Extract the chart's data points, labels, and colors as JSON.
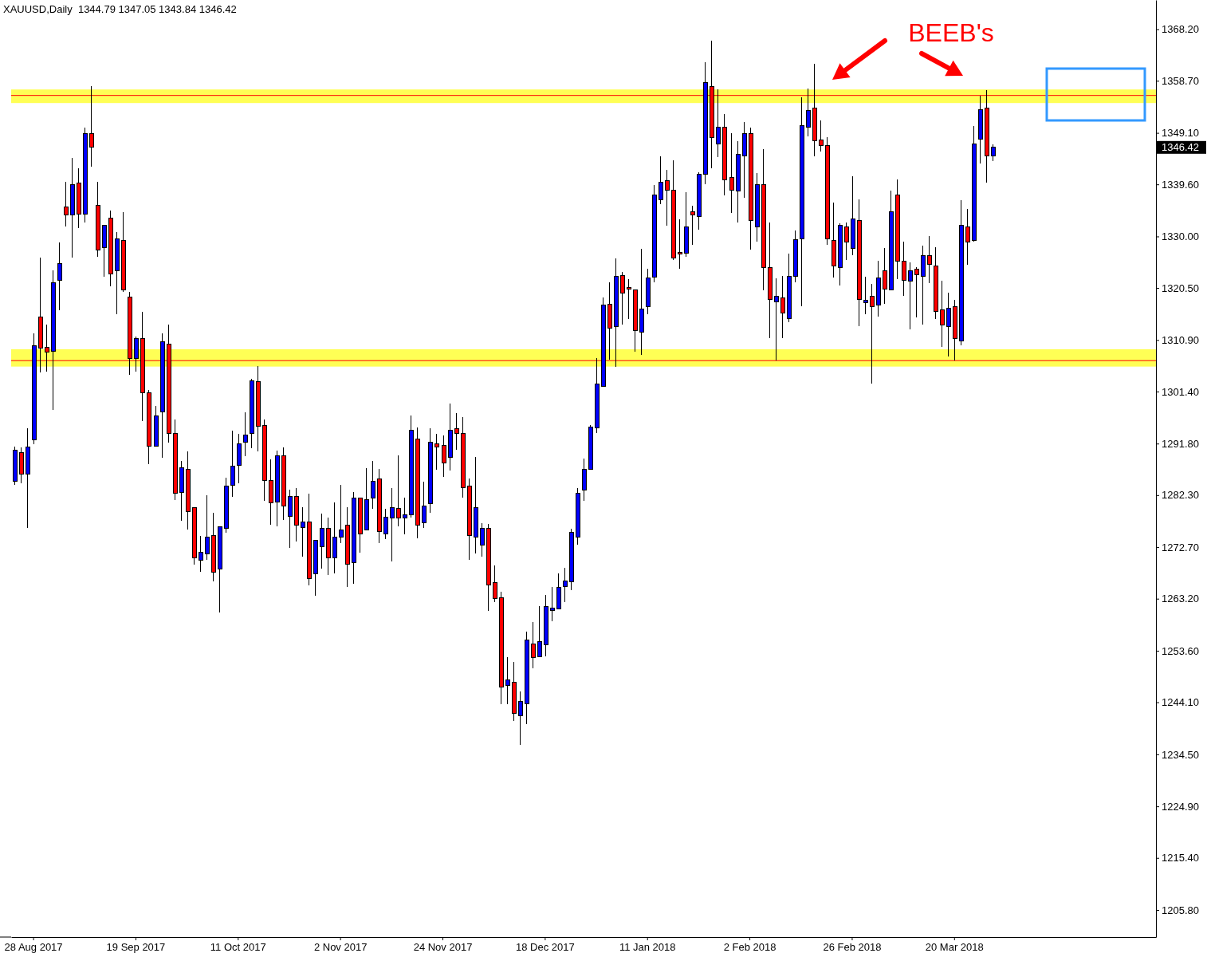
{
  "chart_data": {
    "type": "candlestick",
    "title": "XAUUSD,Daily  1344.79 1347.05 1343.84 1346.42",
    "categories": [
      null,
      null,
      null,
      "28 Aug 2017",
      null,
      null,
      null,
      null,
      null,
      null,
      null,
      null,
      null,
      null,
      null,
      null,
      null,
      null,
      null,
      "19 Sep 2017",
      null,
      null,
      null,
      null,
      null,
      null,
      null,
      null,
      null,
      null,
      null,
      null,
      null,
      null,
      null,
      "11 Oct 2017",
      null,
      null,
      null,
      null,
      null,
      null,
      null,
      null,
      null,
      null,
      null,
      null,
      null,
      null,
      null,
      "2 Nov 2017",
      null,
      null,
      null,
      null,
      null,
      null,
      null,
      null,
      null,
      null,
      null,
      null,
      null,
      null,
      null,
      "24 Nov 2017",
      null,
      null,
      null,
      null,
      null,
      null,
      null,
      null,
      null,
      null,
      null,
      null,
      null,
      null,
      null,
      "18 Dec 2017",
      null,
      null,
      null,
      null,
      null,
      null,
      null,
      null,
      null,
      null,
      null,
      null,
      null,
      null,
      null,
      "11 Jan 2018",
      null,
      null,
      null,
      null,
      null,
      null,
      null,
      null,
      null,
      null,
      null,
      null,
      null,
      null,
      null,
      "2 Feb 2018",
      null,
      null,
      null,
      null,
      null,
      null,
      null,
      null,
      null,
      null,
      null,
      null,
      null,
      null,
      null,
      "26 Feb 2018",
      null,
      null,
      null,
      null,
      null,
      null,
      null,
      null,
      null,
      null,
      null,
      null,
      null,
      null,
      null,
      "20 Mar 2018",
      null,
      null,
      null,
      null,
      null,
      null,
      null,
      null,
      null,
      null,
      null,
      null,
      null,
      null,
      null,
      null,
      null,
      null,
      null,
      null,
      null,
      null,
      null,
      null,
      null,
      null,
      null,
      null,
      null,
      null,
      null
    ],
    "ohlc": [
      [
        1284.8,
        1291.3,
        1284.2,
        1290.6
      ],
      [
        1290.2,
        1291.1,
        1284.5,
        1286.2
      ],
      [
        1286.2,
        1294.6,
        1276.2,
        1291.2
      ],
      [
        1292.5,
        1312.1,
        1291.7,
        1309.9
      ],
      [
        1315.2,
        1326.1,
        1304.9,
        1309.4
      ],
      [
        1309.5,
        1313.7,
        1305.1,
        1308.7
      ],
      [
        1308.8,
        1323.7,
        1298.0,
        1321.4
      ],
      [
        1321.9,
        1328.9,
        1316.4,
        1325.0
      ],
      [
        1335.5,
        1340.0,
        1331.8,
        1334.0
      ],
      [
        1334.0,
        1344.5,
        1326.1,
        1339.6
      ],
      [
        1339.8,
        1342.6,
        1331.6,
        1334.1
      ],
      [
        1334.1,
        1350.0,
        1332.5,
        1349.0
      ],
      [
        1348.9,
        1357.7,
        1342.8,
        1346.5
      ],
      [
        1335.7,
        1340.0,
        1326.3,
        1327.5
      ],
      [
        1327.9,
        1332.1,
        1322.6,
        1332.0
      ],
      [
        1333.4,
        1334.8,
        1320.8,
        1323.1
      ],
      [
        1323.7,
        1330.8,
        1315.6,
        1329.5
      ],
      [
        1329.2,
        1334.5,
        1319.8,
        1320.1
      ],
      [
        1318.8,
        1319.8,
        1304.5,
        1307.5
      ],
      [
        1307.5,
        1311.6,
        1305.1,
        1311.1
      ],
      [
        1311.2,
        1316.1,
        1296.0,
        1301.2
      ],
      [
        1301.2,
        1301.7,
        1288.0,
        1291.3
      ],
      [
        1291.3,
        1298.7,
        1291.2,
        1296.9
      ],
      [
        1297.6,
        1312.1,
        1289.2,
        1310.6
      ],
      [
        1310.2,
        1313.8,
        1292.0,
        1293.7
      ],
      [
        1293.6,
        1296.2,
        1281.4,
        1282.6
      ],
      [
        1282.8,
        1288.6,
        1277.6,
        1287.3
      ],
      [
        1287.0,
        1290.4,
        1276.0,
        1279.2
      ],
      [
        1280.0,
        1280.1,
        1269.5,
        1270.8
      ],
      [
        1270.3,
        1274.7,
        1268.2,
        1271.8
      ],
      [
        1271.5,
        1282.3,
        1270.4,
        1274.6
      ],
      [
        1274.9,
        1279.1,
        1266.4,
        1268.1
      ],
      [
        1268.6,
        1276.6,
        1260.6,
        1276.4
      ],
      [
        1276.2,
        1285.5,
        1275.3,
        1283.9
      ],
      [
        1284.1,
        1294.2,
        1282.0,
        1287.7
      ],
      [
        1287.8,
        1293.6,
        1284.5,
        1291.7
      ],
      [
        1292.1,
        1297.6,
        1289.5,
        1293.4
      ],
      [
        1293.6,
        1303.8,
        1290.9,
        1303.4
      ],
      [
        1303.3,
        1306.1,
        1290.4,
        1295.0
      ],
      [
        1295.2,
        1296.2,
        1281.3,
        1285.0
      ],
      [
        1285.0,
        1288.9,
        1276.9,
        1280.9
      ],
      [
        1281.0,
        1290.5,
        1276.6,
        1289.6
      ],
      [
        1289.5,
        1291.1,
        1277.7,
        1280.3
      ],
      [
        1278.4,
        1283.3,
        1272.5,
        1282.0
      ],
      [
        1282.1,
        1283.6,
        1273.7,
        1276.7
      ],
      [
        1276.3,
        1280.0,
        1270.9,
        1277.4
      ],
      [
        1277.4,
        1282.5,
        1265.6,
        1266.9
      ],
      [
        1267.8,
        1274.1,
        1263.7,
        1274.0
      ],
      [
        1272.8,
        1278.9,
        1268.8,
        1276.2
      ],
      [
        1276.2,
        1278.1,
        1267.6,
        1270.8
      ],
      [
        1270.8,
        1280.9,
        1267.9,
        1274.5
      ],
      [
        1274.6,
        1284.2,
        1273.4,
        1275.9
      ],
      [
        1276.7,
        1280.0,
        1265.4,
        1269.6
      ],
      [
        1269.9,
        1282.9,
        1266.0,
        1281.8
      ],
      [
        1281.7,
        1281.8,
        1271.7,
        1275.2
      ],
      [
        1275.9,
        1287.3,
        1275.9,
        1281.4
      ],
      [
        1281.8,
        1288.6,
        1279.8,
        1284.9
      ],
      [
        1285.3,
        1287.2,
        1273.4,
        1275.6
      ],
      [
        1275.2,
        1279.8,
        1274.2,
        1278.2
      ],
      [
        1278.1,
        1283.6,
        1270.0,
        1280.0
      ],
      [
        1279.9,
        1289.6,
        1276.6,
        1278.1
      ],
      [
        1278.1,
        1281.8,
        1275.1,
        1278.6
      ],
      [
        1278.6,
        1297.0,
        1278.2,
        1294.3
      ],
      [
        1292.7,
        1294.8,
        1274.4,
        1276.8
      ],
      [
        1277.2,
        1284.8,
        1276.2,
        1280.3
      ],
      [
        1280.8,
        1294.6,
        1279.0,
        1292.0
      ],
      [
        1291.8,
        1293.6,
        1287.0,
        1291.1
      ],
      [
        1291.4,
        1293.3,
        1285.6,
        1288.3
      ],
      [
        1289.3,
        1299.2,
        1286.8,
        1294.3
      ],
      [
        1294.5,
        1297.4,
        1290.6,
        1293.6
      ],
      [
        1293.6,
        1296.7,
        1281.9,
        1283.6
      ],
      [
        1283.9,
        1285.3,
        1270.3,
        1274.9
      ],
      [
        1274.5,
        1289.3,
        1271.6,
        1280.0
      ],
      [
        1273.1,
        1277.1,
        1271.0,
        1276.1
      ],
      [
        1276.2,
        1277.0,
        1260.9,
        1265.8
      ],
      [
        1266.1,
        1269.3,
        1262.5,
        1263.3
      ],
      [
        1263.4,
        1264.5,
        1243.8,
        1246.9
      ],
      [
        1247.2,
        1252.4,
        1243.8,
        1248.3
      ],
      [
        1247.8,
        1251.5,
        1240.6,
        1242.1
      ],
      [
        1241.6,
        1246.1,
        1236.3,
        1244.2
      ],
      [
        1243.8,
        1257.1,
        1240.0,
        1255.6
      ],
      [
        1254.8,
        1258.9,
        1250.3,
        1252.3
      ],
      [
        1252.5,
        1261.8,
        1252.5,
        1255.3
      ],
      [
        1254.7,
        1263.9,
        1252.5,
        1261.8
      ],
      [
        1261.0,
        1265.3,
        1259.0,
        1261.4
      ],
      [
        1261.3,
        1267.8,
        1261.3,
        1265.3
      ],
      [
        1265.5,
        1268.9,
        1262.5,
        1266.5
      ],
      [
        1266.3,
        1276.1,
        1264.7,
        1275.4
      ],
      [
        1274.5,
        1283.6,
        1273.1,
        1282.7
      ],
      [
        1283.2,
        1289.0,
        1281.2,
        1287.0
      ],
      [
        1287.0,
        1295.2,
        1287.0,
        1294.8
      ],
      [
        1294.7,
        1307.5,
        1293.8,
        1302.8
      ],
      [
        1302.3,
        1318.8,
        1302.3,
        1317.3
      ],
      [
        1317.5,
        1321.5,
        1307.3,
        1313.1
      ],
      [
        1313.4,
        1326.0,
        1305.9,
        1322.7
      ],
      [
        1322.8,
        1323.4,
        1313.7,
        1319.5
      ],
      [
        1320.6,
        1322.2,
        1314.8,
        1320.3
      ],
      [
        1320.2,
        1320.2,
        1308.8,
        1312.7
      ],
      [
        1312.4,
        1327.7,
        1308.2,
        1316.6
      ],
      [
        1317.0,
        1324.0,
        1315.7,
        1322.4
      ],
      [
        1322.5,
        1339.5,
        1321.5,
        1337.7
      ],
      [
        1336.8,
        1344.8,
        1335.9,
        1340.0
      ],
      [
        1340.3,
        1342.3,
        1332.0,
        1338.5
      ],
      [
        1338.5,
        1344.1,
        1325.7,
        1326.0
      ],
      [
        1327.1,
        1333.2,
        1324.1,
        1326.8
      ],
      [
        1326.9,
        1338.2,
        1326.3,
        1331.7
      ],
      [
        1334.6,
        1335.6,
        1328.4,
        1333.9
      ],
      [
        1333.6,
        1341.9,
        1331.3,
        1341.4
      ],
      [
        1341.5,
        1362.2,
        1339.6,
        1358.4
      ],
      [
        1357.6,
        1366.1,
        1342.5,
        1348.3
      ],
      [
        1347.1,
        1357.2,
        1344.6,
        1350.2
      ],
      [
        1350.1,
        1352.5,
        1337.6,
        1340.4
      ],
      [
        1340.9,
        1349.1,
        1334.4,
        1338.5
      ],
      [
        1338.4,
        1347.6,
        1332.6,
        1345.1
      ],
      [
        1344.9,
        1351.1,
        1337.2,
        1348.9
      ],
      [
        1349.0,
        1350.1,
        1327.5,
        1332.9
      ],
      [
        1331.8,
        1341.7,
        1329.0,
        1339.6
      ],
      [
        1339.5,
        1346.1,
        1320.1,
        1324.3
      ],
      [
        1324.2,
        1332.5,
        1311.3,
        1318.4
      ],
      [
        1317.9,
        1322.3,
        1307.1,
        1318.9
      ],
      [
        1318.6,
        1322.7,
        1311.2,
        1315.9
      ],
      [
        1314.8,
        1326.9,
        1314.2,
        1322.6
      ],
      [
        1322.6,
        1331.1,
        1321.6,
        1329.4
      ],
      [
        1329.6,
        1355.7,
        1317.2,
        1350.5
      ],
      [
        1350.1,
        1357.3,
        1348.5,
        1353.3
      ],
      [
        1353.6,
        1361.9,
        1344.8,
        1347.7
      ],
      [
        1347.8,
        1351.4,
        1345.7,
        1346.7
      ],
      [
        1346.8,
        1348.3,
        1328.5,
        1329.5
      ],
      [
        1329.3,
        1336.3,
        1322.4,
        1324.5
      ],
      [
        1324.3,
        1332.4,
        1320.9,
        1332.1
      ],
      [
        1331.7,
        1332.6,
        1325.7,
        1328.9
      ],
      [
        1327.8,
        1341.1,
        1326.6,
        1333.3
      ],
      [
        1332.9,
        1336.8,
        1313.4,
        1318.4
      ],
      [
        1317.8,
        1322.6,
        1315.6,
        1318.2
      ],
      [
        1319.0,
        1321.3,
        1302.8,
        1317.0
      ],
      [
        1317.3,
        1325.5,
        1315.2,
        1322.4
      ],
      [
        1323.7,
        1327.9,
        1317.5,
        1320.3
      ],
      [
        1320.1,
        1338.5,
        1320.0,
        1334.6
      ],
      [
        1337.7,
        1340.5,
        1322.2,
        1325.5
      ],
      [
        1325.4,
        1329.0,
        1319.0,
        1321.9
      ],
      [
        1321.7,
        1325.2,
        1312.8,
        1323.6
      ],
      [
        1323.9,
        1324.4,
        1315.0,
        1323.0
      ],
      [
        1322.6,
        1328.3,
        1313.8,
        1326.4
      ],
      [
        1326.4,
        1330.1,
        1321.4,
        1324.9
      ],
      [
        1324.6,
        1328.0,
        1314.8,
        1316.1
      ],
      [
        1316.5,
        1321.9,
        1309.6,
        1313.7
      ],
      [
        1313.4,
        1319.7,
        1307.8,
        1316.8
      ],
      [
        1317.1,
        1318.3,
        1307.2,
        1311.1
      ],
      [
        1310.8,
        1336.7,
        1309.9,
        1332.1
      ],
      [
        1331.8,
        1335.0,
        1324.8,
        1328.9
      ],
      [
        1329.2,
        1350.4,
        1329.0,
        1347.0
      ],
      [
        1348.0,
        1355.9,
        1343.5,
        1353.4
      ],
      [
        1353.7,
        1357.0,
        1339.9,
        1344.8
      ],
      [
        1344.79,
        1347.05,
        1343.84,
        1346.42
      ],
      null,
      null,
      null,
      null,
      null,
      null,
      null,
      null,
      null,
      null,
      null,
      null,
      null,
      null,
      null,
      null,
      null,
      null,
      null,
      null,
      null,
      null,
      null,
      null,
      null
    ],
    "colors": [
      "#0000ff",
      "#ff0000",
      "#0000ff",
      "#0000ff",
      "#ff0000",
      "#ff0000",
      "#0000ff",
      "#0000ff",
      "#ff0000",
      "#0000ff",
      "#ff0000",
      "#0000ff",
      "#ff0000",
      "#ff0000",
      "#0000ff",
      "#ff0000",
      "#0000ff",
      "#ff0000",
      "#ff0000",
      "#0000ff",
      "#ff0000",
      "#ff0000",
      "#0000ff",
      "#0000ff",
      "#ff0000",
      "#ff0000",
      "#0000ff",
      "#ff0000",
      "#ff0000",
      "#0000ff",
      "#0000ff",
      "#ff0000",
      "#0000ff",
      "#0000ff",
      "#0000ff",
      "#0000ff",
      "#0000ff",
      "#0000ff",
      "#ff0000",
      "#ff0000",
      "#ff0000",
      "#0000ff",
      "#ff0000",
      "#0000ff",
      "#ff0000",
      "#0000ff",
      "#ff0000",
      "#0000ff",
      "#0000ff",
      "#ff0000",
      "#0000ff",
      "#0000ff",
      "#ff0000",
      "#0000ff",
      "#ff0000",
      "#0000ff",
      "#0000ff",
      "#ff0000",
      "#0000ff",
      "#0000ff",
      "#ff0000",
      "#0000ff",
      "#0000ff",
      "#ff0000",
      "#0000ff",
      "#0000ff",
      "#ff0000",
      "#ff0000",
      "#0000ff",
      "#ff0000",
      "#ff0000",
      "#ff0000",
      "#0000ff",
      "#0000ff",
      "#ff0000",
      "#ff0000",
      "#ff0000",
      "#0000ff",
      "#ff0000",
      "#0000ff",
      "#0000ff",
      "#ff0000",
      "#0000ff",
      "#0000ff",
      "#0000ff",
      "#0000ff",
      "#0000ff",
      "#0000ff",
      "#0000ff",
      "#0000ff",
      "#0000ff",
      "#0000ff",
      "#0000ff",
      "#ff0000",
      "#0000ff",
      "#ff0000",
      "#ff0000",
      "#ff0000",
      "#0000ff",
      "#0000ff",
      "#0000ff",
      "#0000ff",
      "#ff0000",
      "#ff0000",
      "#ff0000",
      "#0000ff",
      "#ff0000",
      "#0000ff",
      "#0000ff",
      "#ff0000",
      "#0000ff",
      "#ff0000",
      "#ff0000",
      "#0000ff",
      "#0000ff",
      "#ff0000",
      "#0000ff",
      "#ff0000",
      "#ff0000",
      "#0000ff",
      "#ff0000",
      "#0000ff",
      "#0000ff",
      "#0000ff",
      "#0000ff",
      "#ff0000",
      "#ff0000",
      "#ff0000",
      "#ff0000",
      "#0000ff",
      "#ff0000",
      "#0000ff",
      "#ff0000",
      "#0000ff",
      "#ff0000",
      "#0000ff",
      "#ff0000",
      "#0000ff",
      "#ff0000",
      "#ff0000",
      "#0000ff",
      "#ff0000",
      "#0000ff",
      "#ff0000",
      "#ff0000",
      "#ff0000",
      "#0000ff",
      "#ff0000",
      "#0000ff",
      "#ff0000",
      "#0000ff",
      "#0000ff",
      "#ff0000",
      "#0000ff",
      null,
      null,
      null,
      null,
      null,
      null,
      null,
      null,
      null,
      null,
      null,
      null,
      null,
      null,
      null,
      null,
      null,
      null,
      null,
      null,
      null,
      null,
      null,
      null,
      null
    ],
    "ylim": [
      1200.8,
      1373.6
    ],
    "yticks": [
      {
        "value": 1205.8,
        "label": "1205.80"
      },
      {
        "value": 1215.4,
        "label": "1215.40"
      },
      {
        "value": 1224.9,
        "label": "1224.90"
      },
      {
        "value": 1234.5,
        "label": "1234.50"
      },
      {
        "value": 1244.1,
        "label": "1244.10"
      },
      {
        "value": 1253.6,
        "label": "1253.60"
      },
      {
        "value": 1263.2,
        "label": "1263.20"
      },
      {
        "value": 1272.7,
        "label": "1272.70"
      },
      {
        "value": 1282.3,
        "label": "1282.30"
      },
      {
        "value": 1291.8,
        "label": "1291.80"
      },
      {
        "value": 1301.4,
        "label": "1301.40"
      },
      {
        "value": 1310.9,
        "label": "1310.90"
      },
      {
        "value": 1320.5,
        "label": "1320.50"
      },
      {
        "value": 1330.0,
        "label": "1330.00"
      },
      {
        "value": 1339.6,
        "label": "1339.60"
      },
      {
        "value": 1349.1,
        "label": "1349.10"
      },
      {
        "value": 1358.7,
        "label": "1358.70"
      },
      {
        "value": 1368.2,
        "label": "1368.20"
      }
    ],
    "ref_lines": [
      {
        "axis": "y",
        "value": 1356.0,
        "color": "#ff0000"
      },
      {
        "axis": "y",
        "value": 1307.1,
        "color": "#ff0000"
      }
    ],
    "bands": [
      {
        "axis": "y",
        "from": 1306.0,
        "to": 1309.2,
        "color": "#ffff55"
      },
      {
        "axis": "y",
        "from": 1354.6,
        "to": 1357.1,
        "color": "#ffff55"
      }
    ],
    "annotations": [
      "BEEB's",
      "1346.42"
    ]
  }
}
